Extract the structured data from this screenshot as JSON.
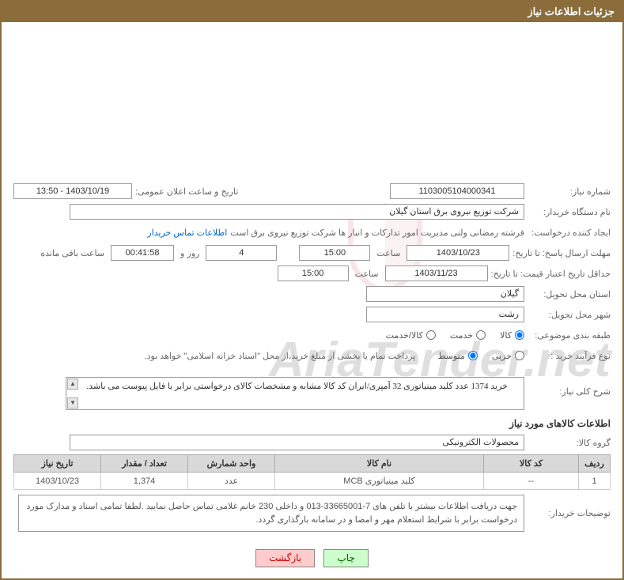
{
  "header": {
    "title": "جزئیات اطلاعات نیاز"
  },
  "fields": {
    "need_number_label": "شماره نیاز:",
    "need_number": "1103005104000341",
    "announce_datetime_label": "تاریخ و ساعت اعلان عمومی:",
    "announce_datetime": "1403/10/19 - 13:50",
    "buyer_org_label": "نام دستگاه خریدار:",
    "buyer_org": "شرکت توزیع نیروی برق استان گیلان",
    "requester_label": "ایجاد کننده درخواست:",
    "requester": "فرشته رمضانی ولنی مدیریت امور تدارکات و انبار ها شرکت توزیع نیروی برق است",
    "contact_link": "اطلاعات تماس خریدار",
    "reply_deadline_label": "مهلت ارسال پاسخ: تا تاریخ:",
    "reply_deadline_date": "1403/10/23",
    "time_label": "ساعت",
    "reply_deadline_time": "15:00",
    "days_remaining": "4",
    "days_and_label": "روز و",
    "time_remaining": "00:41:58",
    "time_remaining_label": "ساعت باقی مانده",
    "price_validity_label": "حداقل تاریخ اعتبار قیمت: تا تاریخ:",
    "price_validity_date": "1403/11/23",
    "price_validity_time": "15:00",
    "delivery_province_label": "استان محل تحویل:",
    "delivery_province": "گیلان",
    "delivery_city_label": "شهر محل تحویل:",
    "delivery_city": "رشت",
    "category_label": "طبقه بندی موضوعی:",
    "radio_goods": "کالا",
    "radio_service": "خدمت",
    "radio_goods_service": "کالا/خدمت",
    "purchase_type_label": "نوع فرآیند خرید :",
    "radio_partial": "جزیی",
    "radio_medium": "متوسط",
    "purchase_note": "پرداخت تمام یا بخشی از مبلغ خرید،از محل \"اسناد خزانه اسلامی\" خواهد بود.",
    "need_desc_label": "شرح کلی نیاز:",
    "need_desc": "خرید 1374 عدد کلید مینیاتوری 32 آمپری/ایران کد کالا مشابه و مشخصات کالای درخواستی برابر با فایل پیوست می باشد.",
    "goods_info_title": "اطلاعات کالاهای مورد نیاز",
    "goods_group_label": "گروه کالا:",
    "goods_group": "محصولات الکترونیکی",
    "buyer_notes_label": "توضیحات خریدار:",
    "buyer_notes": "جهت دریافت اطلاعات بیشتر با تلفن های 7-33665001-013 و داخلی 230 خانم غلامی تماس حاصل نمایید .لطفا تمامی اسناد و مدارک مورد درخواست برابر با شرایط استعلام مهر و امضا و در سامانه بارگذاری گردد."
  },
  "table": {
    "columns": [
      "ردیف",
      "کد کالا",
      "نام کالا",
      "واحد شمارش",
      "تعداد / مقدار",
      "تاریخ نیاز"
    ],
    "rows": [
      [
        "1",
        "--",
        "کلید مینیاتوری MCB",
        "عدد",
        "1,374",
        "1403/10/23"
      ]
    ],
    "col_widths": [
      "40px",
      "120px",
      "auto",
      "110px",
      "110px",
      "110px"
    ]
  },
  "buttons": {
    "print": "چاپ",
    "back": "بازگشت"
  },
  "watermark": "AriaTender.net",
  "colors": {
    "header_bg": "#8a6d3b",
    "border": "#8a6d3b",
    "table_header_bg": "#d9d9d9",
    "link": "#0066cc"
  }
}
